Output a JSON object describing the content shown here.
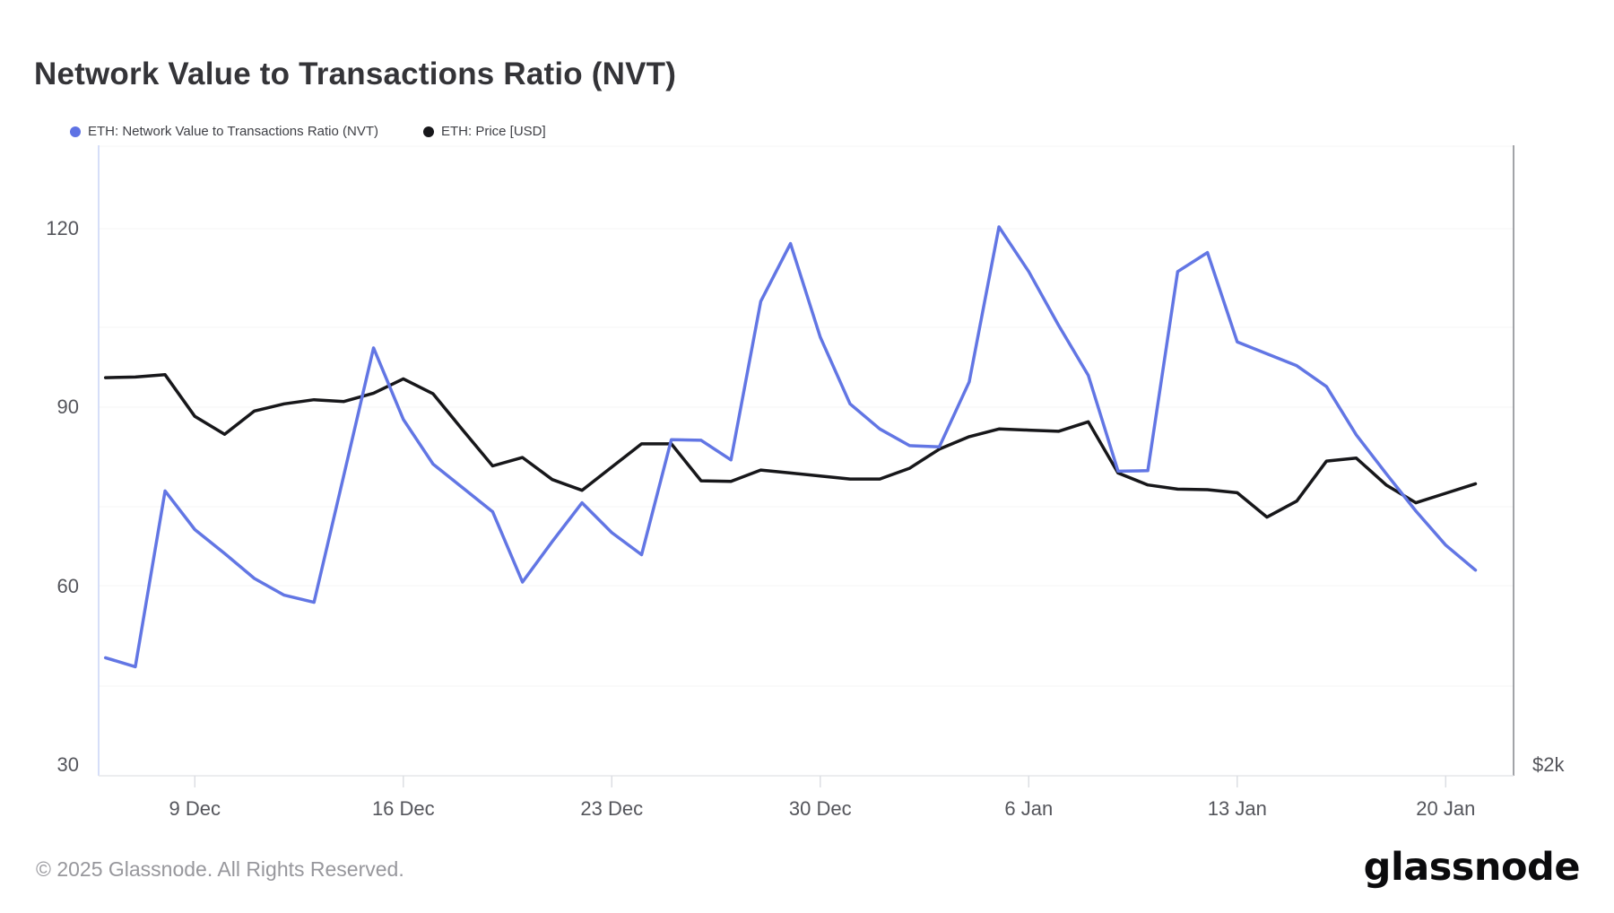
{
  "header": {
    "title": "Network Value to Transactions Ratio (NVT)"
  },
  "legend": [
    {
      "label": "ETH: Network Value to Transactions Ratio (NVT)",
      "color": "#5e72e4"
    },
    {
      "label": "ETH: Price [USD]",
      "color": "#17171a"
    }
  ],
  "right_axis": {
    "visible_tick": "$2k"
  },
  "footer": {
    "copyright": "© 2025 Glassnode. All Rights Reserved.",
    "brand": "glassnode"
  },
  "chart_data": {
    "type": "line",
    "title": "Network Value to Transactions Ratio (NVT)",
    "x": [
      "6 Dec",
      "7 Dec",
      "8 Dec",
      "9 Dec",
      "10 Dec",
      "11 Dec",
      "12 Dec",
      "13 Dec",
      "14 Dec",
      "15 Dec",
      "16 Dec",
      "17 Dec",
      "18 Dec",
      "19 Dec",
      "20 Dec",
      "21 Dec",
      "22 Dec",
      "23 Dec",
      "24 Dec",
      "25 Dec",
      "26 Dec",
      "27 Dec",
      "28 Dec",
      "29 Dec",
      "30 Dec",
      "31 Dec",
      "1 Jan",
      "2 Jan",
      "3 Jan",
      "4 Jan",
      "5 Jan",
      "6 Jan",
      "7 Jan",
      "8 Jan",
      "9 Jan",
      "10 Jan",
      "11 Jan",
      "12 Jan",
      "13 Jan",
      "14 Jan",
      "15 Jan",
      "16 Jan",
      "17 Jan",
      "18 Jan",
      "19 Jan",
      "20 Jan",
      "21 Jan"
    ],
    "x_tick_labels": [
      "9 Dec",
      "16 Dec",
      "23 Dec",
      "30 Dec",
      "6 Jan",
      "13 Jan",
      "20 Jan"
    ],
    "x_tick_indices": [
      3,
      10,
      17,
      24,
      31,
      38,
      45
    ],
    "y_axis_left": {
      "ticks": [
        120,
        90,
        60,
        30
      ],
      "range": [
        28,
        136
      ]
    },
    "y_axis_right": {
      "bottom_tick_label": "$2k"
    },
    "grid": "horizontal-faint",
    "legend_position": "top-left",
    "series": [
      {
        "name": "ETH: Network Value to Transactions Ratio (NVT)",
        "color": "#6276e4",
        "values": [
          48,
          46.5,
          76,
          69.5,
          65.5,
          61.3,
          58.5,
          57.3,
          78.6,
          100,
          88,
          80.5,
          76.5,
          72.5,
          60.7,
          67.5,
          74,
          69,
          65.3,
          84.6,
          84.5,
          81.2,
          107.8,
          117.5,
          101.8,
          90.6,
          86.4,
          83.6,
          83.4,
          94.3,
          120.3,
          112.8,
          103.8,
          95.4,
          79.3,
          79.4,
          112.8,
          116,
          101,
          99,
          97,
          93.5,
          85.4,
          78.9,
          72.6,
          66.9,
          62.7
        ]
      },
      {
        "name": "ETH: Price [USD]",
        "color": "#17171a",
        "axis": "right",
        "note": "price curve read in left-axis display units; right axis shows only $2k at bottom",
        "values": [
          95,
          95.1,
          95.5,
          88.5,
          85.5,
          89.4,
          90.6,
          91.3,
          91,
          92.4,
          94.8,
          92.3,
          86.2,
          80.2,
          81.6,
          77.9,
          76.1,
          80,
          83.9,
          83.9,
          77.7,
          77.6,
          79.5,
          79,
          78.5,
          78,
          78,
          79.8,
          83,
          85.1,
          86.4,
          86.2,
          86,
          87.6,
          79,
          77,
          76.3,
          76.2,
          75.7,
          71.6,
          74.3,
          81,
          81.5,
          77,
          74,
          75.6,
          77.2
        ]
      }
    ]
  }
}
